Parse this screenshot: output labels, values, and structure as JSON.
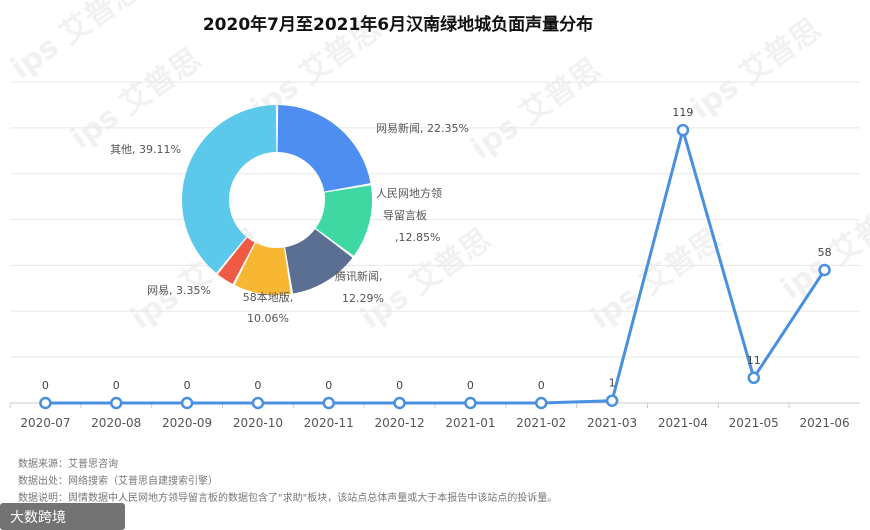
{
  "title": "2020年7月至2021年6月汉南绿地城负面声量分布",
  "watermark": "ips 艾普思",
  "brand": "大数跨境",
  "footer": {
    "line1": "数据来源：艾普思咨询",
    "line2": "数据出处：网络搜索（艾普思自建搜索引擎）",
    "line3": "数据说明：舆情数据中人民网地方领导留言板的数据包含了\"求助\"板块，该站点总体声量或大于本报告中该站点的投诉量。"
  },
  "colors": {
    "line": "#4a8fe0",
    "grid": "#e8e8e8"
  },
  "chart_data": [
    {
      "type": "line",
      "categories": [
        "2020-07",
        "2020-08",
        "2020-09",
        "2020-10",
        "2020-11",
        "2020-12",
        "2021-01",
        "2021-02",
        "2021-03",
        "2021-04",
        "2021-05",
        "2021-06"
      ],
      "values": [
        0,
        0,
        0,
        0,
        0,
        0,
        0,
        0,
        1,
        119,
        11,
        58
      ],
      "ylim": [
        0,
        140
      ],
      "grid": true
    },
    {
      "type": "pie",
      "donut": true,
      "slices": [
        {
          "label": "网易新闻",
          "value": 22.35,
          "text": "网易新闻, 22.35%",
          "color": "#4e8ef0"
        },
        {
          "label": "人民网地方领导留言板",
          "value": 12.85,
          "text": "人民网地方领导留言板, 12.85%",
          "color": "#3fd8a3"
        },
        {
          "label": "腾讯新闻",
          "value": 12.29,
          "text": "腾讯新闻, 12.29%",
          "color": "#5b6f92"
        },
        {
          "label": "58本地版",
          "value": 10.06,
          "text": "58本地版, 10.06%",
          "color": "#f7b733"
        },
        {
          "label": "网易",
          "value": 3.35,
          "text": "网易, 3.35%",
          "color": "#ee5a43"
        },
        {
          "label": "其他",
          "value": 39.11,
          "text": "其他, 39.11%",
          "color": "#5cc8ec"
        }
      ]
    }
  ]
}
